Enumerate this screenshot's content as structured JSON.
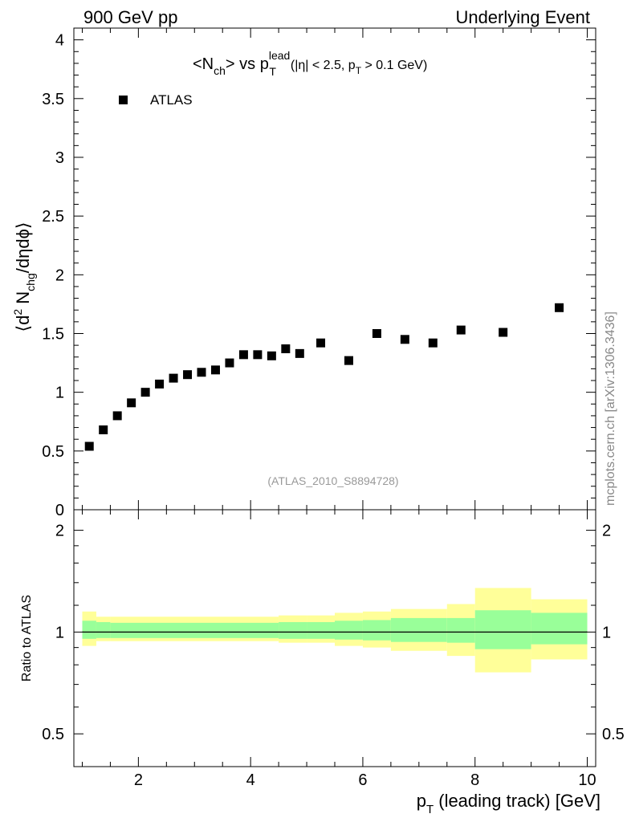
{
  "header": {
    "left": "900 GeV pp",
    "right": "Underlying Event"
  },
  "title": {
    "main": "<N",
    "main_sub": "ch",
    "vs": "> vs p",
    "p_sup": "lead",
    "p_sub": "T",
    "cut_a": "(|η| < 2.5, p",
    "cut_sub": "T",
    "cut_b": " > 0.1 GeV)"
  },
  "side_label": "mcplots.cern.ch [arXiv:1306.3436]",
  "analysis_id": "(ATLAS_2010_S8894728)",
  "ylabel_main": "⟨d² N_chg/dηdϕ⟩",
  "ylabel_ratio": "Ratio to ATLAS",
  "xlabel": "p_T (leading track) [GeV]",
  "chart_data": [
    {
      "type": "scatter",
      "title": "<N_ch> vs p_T^lead (|η| < 2.5, p_T > 0.1 GeV)",
      "xlabel": "p_T (leading track) [GeV]",
      "ylabel": "⟨d² N_chg/dηdϕ⟩",
      "xlim": [
        0.85,
        10.15
      ],
      "ylim": [
        0,
        4.1
      ],
      "xticks": [
        2,
        4,
        6,
        8,
        10
      ],
      "yticks": [
        0,
        0.5,
        1,
        1.5,
        2,
        2.5,
        3,
        3.5,
        4
      ],
      "ytick_labels": [
        "0",
        "0.5",
        "1",
        "1.5",
        "2",
        "2.5",
        "3",
        "3.5",
        "4"
      ],
      "legend": {
        "position": "top-left",
        "entries": [
          "ATLAS"
        ]
      },
      "series": [
        {
          "name": "ATLAS",
          "x": [
            1.125,
            1.375,
            1.625,
            1.875,
            2.125,
            2.375,
            2.625,
            2.875,
            3.125,
            3.375,
            3.625,
            3.875,
            4.125,
            4.375,
            4.625,
            4.875,
            5.25,
            5.75,
            6.25,
            6.75,
            7.25,
            7.75,
            8.5,
            9.5
          ],
          "y": [
            0.54,
            0.68,
            0.8,
            0.91,
            1.0,
            1.07,
            1.12,
            1.15,
            1.17,
            1.19,
            1.25,
            1.32,
            1.32,
            1.31,
            1.37,
            1.33,
            1.42,
            1.27,
            1.5,
            1.45,
            1.42,
            1.53,
            1.51,
            1.72
          ]
        }
      ]
    },
    {
      "type": "area",
      "ylabel": "Ratio to ATLAS",
      "xlabel": "p_T (leading track) [GeV]",
      "xlim": [
        0.85,
        10.15
      ],
      "ylim": [
        0.4,
        2.3
      ],
      "scale": "log",
      "xticks": [
        2,
        4,
        6,
        8,
        10
      ],
      "yticks": [
        0.5,
        1,
        2
      ],
      "ytick_labels": [
        "0.5",
        "1",
        "2"
      ],
      "reference_line": 1,
      "bins": [
        {
          "lo": 1.0,
          "hi": 1.25,
          "stat_lo": 0.955,
          "stat_hi": 1.08,
          "tot_lo": 0.91,
          "tot_hi": 1.15
        },
        {
          "lo": 1.25,
          "hi": 1.5,
          "stat_lo": 0.96,
          "stat_hi": 1.07,
          "tot_lo": 0.94,
          "tot_hi": 1.11
        },
        {
          "lo": 1.5,
          "hi": 4.5,
          "stat_lo": 0.96,
          "stat_hi": 1.065,
          "tot_lo": 0.94,
          "tot_hi": 1.11
        },
        {
          "lo": 4.5,
          "hi": 5.0,
          "stat_lo": 0.955,
          "stat_hi": 1.07,
          "tot_lo": 0.93,
          "tot_hi": 1.12
        },
        {
          "lo": 5.0,
          "hi": 5.5,
          "stat_lo": 0.955,
          "stat_hi": 1.07,
          "tot_lo": 0.93,
          "tot_hi": 1.12
        },
        {
          "lo": 5.5,
          "hi": 6.0,
          "stat_lo": 0.95,
          "stat_hi": 1.08,
          "tot_lo": 0.91,
          "tot_hi": 1.14
        },
        {
          "lo": 6.0,
          "hi": 6.5,
          "stat_lo": 0.945,
          "stat_hi": 1.085,
          "tot_lo": 0.9,
          "tot_hi": 1.15
        },
        {
          "lo": 6.5,
          "hi": 7.5,
          "stat_lo": 0.935,
          "stat_hi": 1.1,
          "tot_lo": 0.88,
          "tot_hi": 1.17
        },
        {
          "lo": 7.5,
          "hi": 8.0,
          "stat_lo": 0.93,
          "stat_hi": 1.1,
          "tot_lo": 0.85,
          "tot_hi": 1.21
        },
        {
          "lo": 8.0,
          "hi": 9.0,
          "stat_lo": 0.89,
          "stat_hi": 1.16,
          "tot_lo": 0.76,
          "tot_hi": 1.35
        },
        {
          "lo": 9.0,
          "hi": 10.0,
          "stat_lo": 0.92,
          "stat_hi": 1.14,
          "tot_lo": 0.83,
          "tot_hi": 1.25
        }
      ]
    }
  ],
  "colors": {
    "marker": "#000000",
    "band_stat": "#99ff99",
    "band_total": "#ffff99",
    "analysis_id": "#999999",
    "side_label": "#888888"
  }
}
